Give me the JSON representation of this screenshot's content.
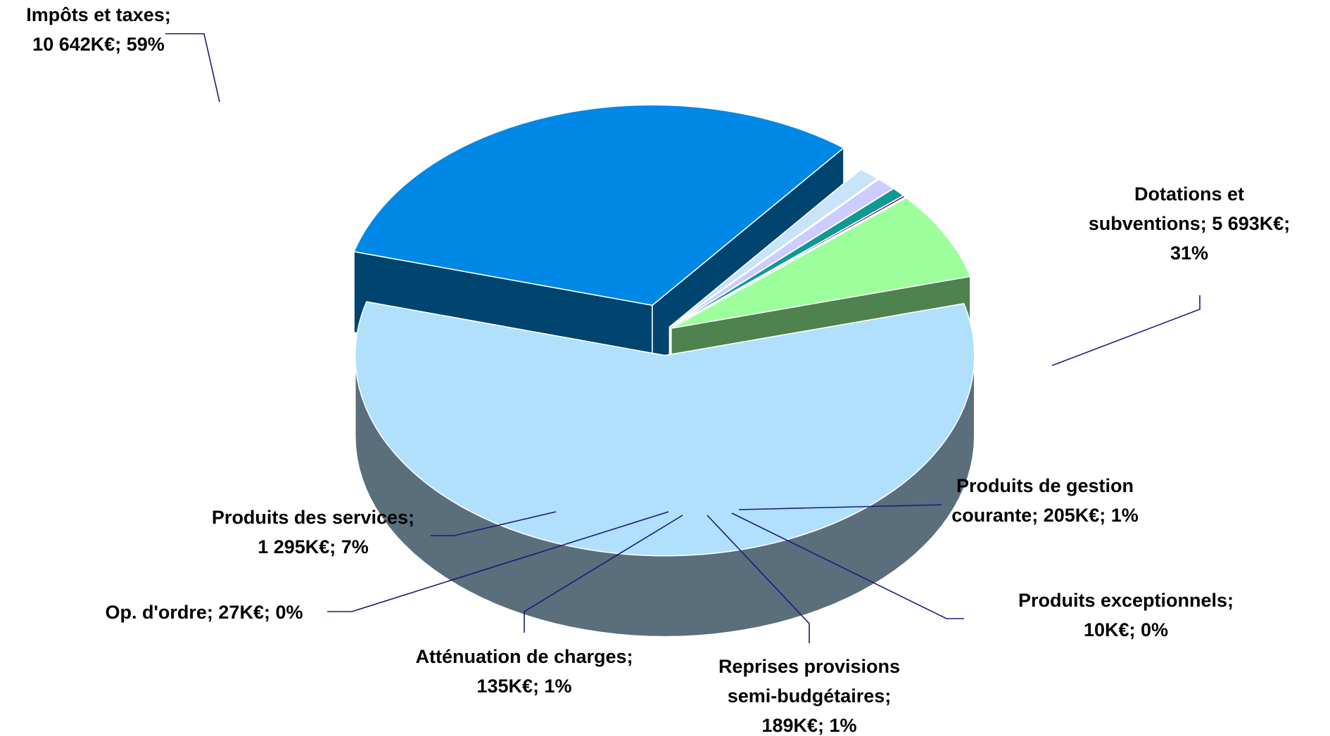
{
  "chart_data": {
    "type": "pie",
    "variant": "3d-exploded",
    "title": "",
    "slices": [
      {
        "label": "Impôts et taxes",
        "value_keur": 10642,
        "value_text": "10 642K€",
        "percent": 59,
        "color": "#B0E0FC",
        "side_color": "#5A6E7C",
        "label_lines": [
          "Impôts et taxes;",
          "10 642K€; 59%"
        ]
      },
      {
        "label": "Dotations et subventions",
        "value_keur": 5693,
        "value_text": "5 693K€",
        "percent": 31,
        "color": "#0088E6",
        "side_color": "#004470",
        "label_lines": [
          "Dotations et",
          "subventions; 5 693K€;",
          "31%"
        ]
      },
      {
        "label": "Produits de gestion courante",
        "value_keur": 205,
        "value_text": "205K€",
        "percent": 1,
        "color": "#C8E4F8",
        "side_color": "#66767E",
        "label_lines": [
          "Produits de gestion",
          "courante; 205K€; 1%"
        ]
      },
      {
        "label": "Produits exceptionnels",
        "value_keur": 10,
        "value_text": "10K€",
        "percent": 0,
        "color": "#1E3A6A",
        "side_color": "#0F1E38",
        "label_lines": [
          "Produits exceptionnels;",
          "10K€; 0%"
        ]
      },
      {
        "label": "Reprises provisions semi-budgétaires",
        "value_keur": 189,
        "value_text": "189K€",
        "percent": 1,
        "color": "#CCCCFF",
        "side_color": "#6A6A82",
        "label_lines": [
          "Reprises provisions",
          "semi-budgétaires;",
          "189K€; 1%"
        ]
      },
      {
        "label": "Atténuation de charges",
        "value_keur": 135,
        "value_text": "135K€",
        "percent": 1,
        "color": "#0E9A92",
        "side_color": "#004848",
        "label_lines": [
          "Atténuation de charges;",
          "135K€; 1%"
        ]
      },
      {
        "label": "Op. d'ordre",
        "value_keur": 27,
        "value_text": "27K€",
        "percent": 0,
        "color": "#7A0A7A",
        "side_color": "#3C003C",
        "label_lines": [
          "Op. d'ordre; 27K€; 0%"
        ]
      },
      {
        "label": "Produits des services",
        "value_keur": 1295,
        "value_text": "1 295K€",
        "percent": 7,
        "color": "#9CFF9C",
        "side_color": "#4E824E",
        "label_lines": [
          "Produits des services;",
          "1 295K€; 7%"
        ]
      }
    ],
    "legend": "none",
    "data_labels": "category; value; percent"
  }
}
